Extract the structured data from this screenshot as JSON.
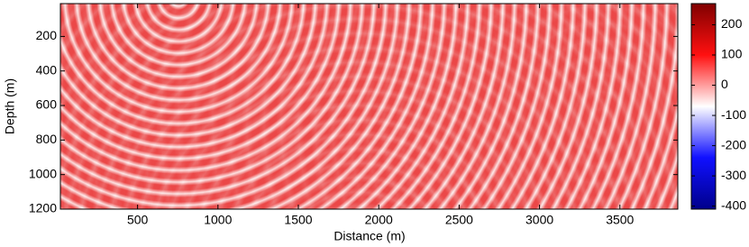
{
  "chart_data": {
    "type": "heatmap",
    "x_label": "Distance (m)",
    "y_label": "Depth (m)",
    "xlim": [
      20,
      3860
    ],
    "xticks": [
      500,
      1000,
      1500,
      2000,
      2500,
      3000,
      3500
    ],
    "ylim": [
      10,
      1200
    ],
    "yticks": [
      200,
      400,
      600,
      800,
      1000,
      1200
    ],
    "y_inverted": true,
    "clim": [
      -410,
      270
    ],
    "cticks": [
      -400,
      -300,
      -200,
      -100,
      0,
      100,
      200
    ],
    "colormap": [
      "#00008b",
      "#1010ff",
      "#ffffff",
      "#ff1010",
      "#800000"
    ]
  }
}
